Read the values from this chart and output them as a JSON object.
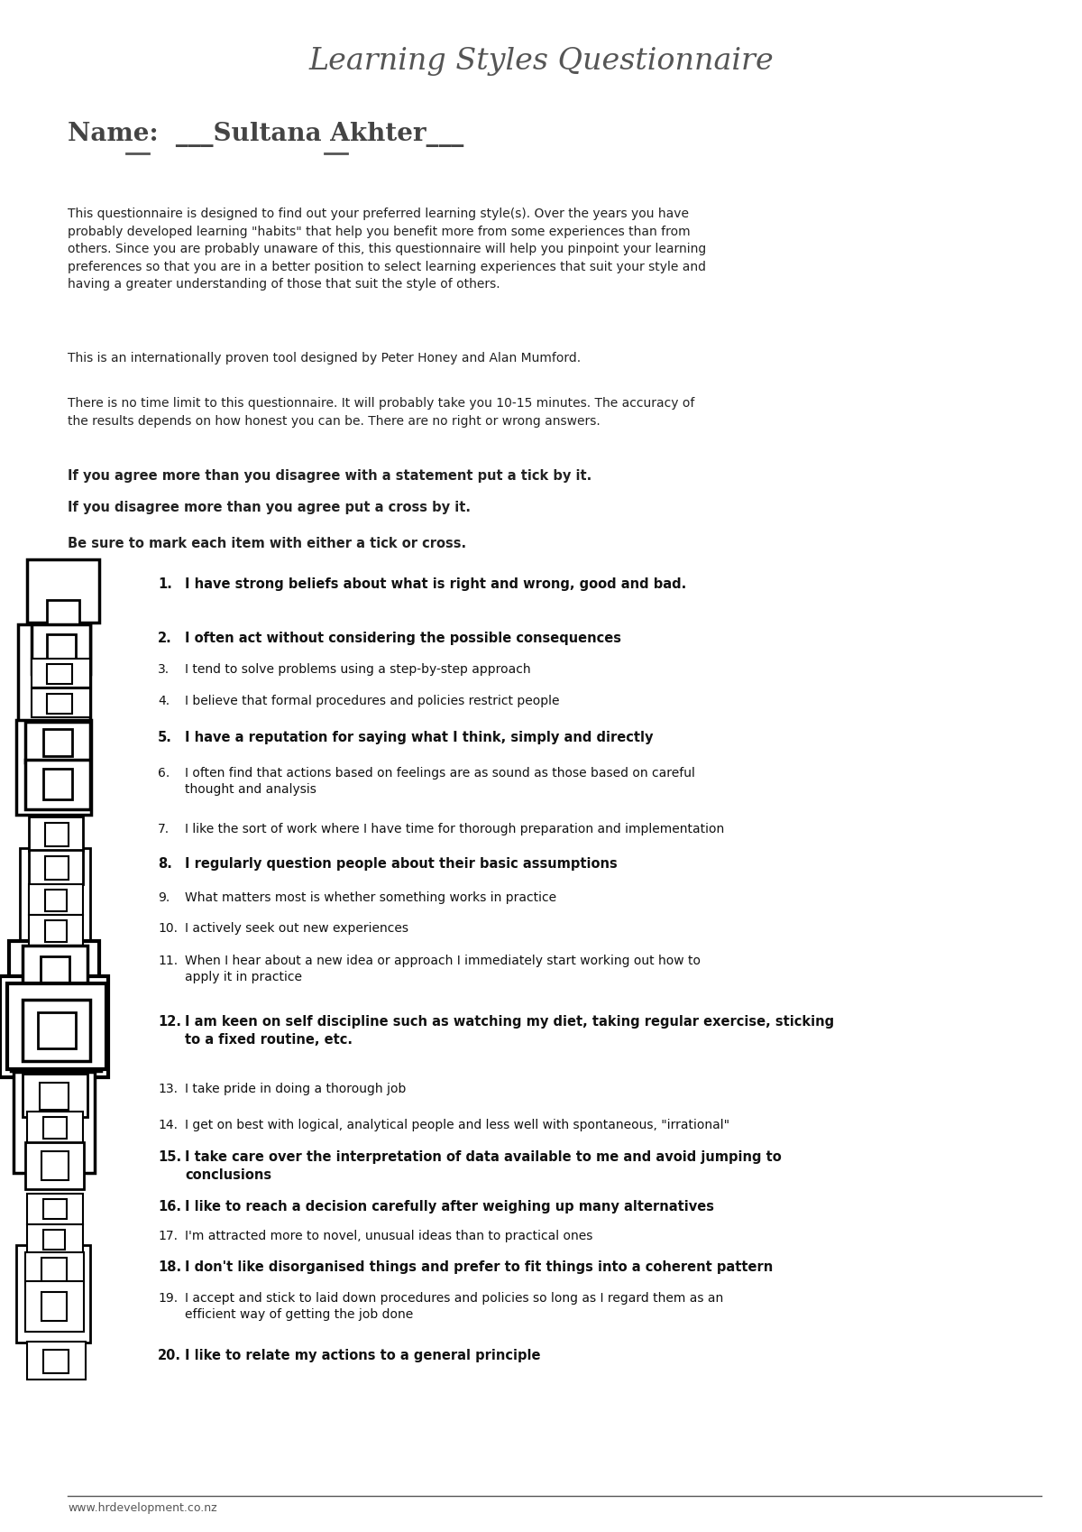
{
  "title": "Learning Styles Questionnaire",
  "bg_color": "#ffffff",
  "title_color": "#555555",
  "para1": "This questionnaire is designed to find out your preferred learning style(s). Over the years you have\nprobably developed learning \"habits\" that help you benefit more from some experiences than from\nothers. Since you are probably unaware of this, this questionnaire will help you pinpoint your learning\npreferences so that you are in a better position to select learning experiences that suit your style and\nhaving a greater understanding of those that suit the style of others.",
  "para2": "This is an internationally proven tool designed by Peter Honey and Alan Mumford.",
  "para3": "There is no time limit to this questionnaire. It will probably take you 10-15 minutes. The accuracy of\nthe results depends on how honest you can be. There are no right or wrong answers.",
  "bold1": "If you agree more than you disagree with a statement put a tick by it.",
  "bold2": "If you disagree more than you agree put a cross by it.",
  "bold3": "Be sure to mark each item with either a tick or cross.",
  "name_text": "Name:  ___Sultana Akhter___",
  "questions": [
    "I have strong beliefs about what is right and wrong, good and bad.",
    "I often act without considering the possible consequences",
    "I tend to solve problems using a step-by-step approach",
    "I believe that formal procedures and policies restrict people",
    "I have a reputation for saying what I think, simply and directly",
    "I often find that actions based on feelings are as sound as those based on careful\nthought and analysis",
    "I like the sort of work where I have time for thorough preparation and implementation",
    "I regularly question people about their basic assumptions",
    "What matters most is whether something works in practice",
    "I actively seek out new experiences",
    "When I hear about a new idea or approach I immediately start working out how to\napply it in practice",
    "I am keen on self discipline such as watching my diet, taking regular exercise, sticking\nto a fixed routine, etc.",
    "I take pride in doing a thorough job",
    "I get on best with logical, analytical people and less well with spontaneous, \"irrational\"",
    "I take care over the interpretation of data available to me and avoid jumping to\nconclusions",
    "I like to reach a decision carefully after weighing up many alternatives",
    "I'm attracted more to novel, unusual ideas than to practical ones",
    "I don't like disorganised things and prefer to fit things into a coherent pattern",
    "I accept and stick to laid down procedures and policies so long as I regard them as an\nefficient way of getting the job done",
    "I like to relate my actions to a general principle"
  ],
  "bold_items": [
    1,
    2,
    5,
    8,
    12,
    15,
    16,
    18,
    20
  ],
  "footer": "www.hrdevelopment.co.nz"
}
